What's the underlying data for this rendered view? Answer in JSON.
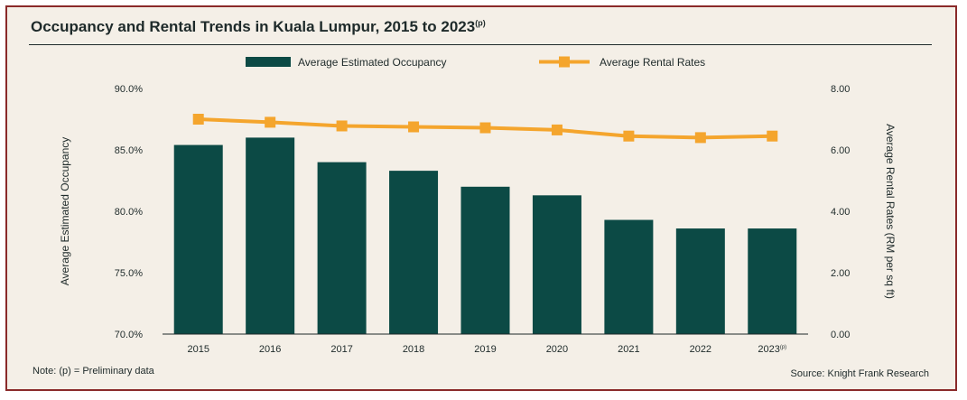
{
  "header": {
    "title": "Occupancy and Rental Trends in Kuala Lumpur, 2015 to 2023",
    "title_superscript": "(p)"
  },
  "footer": {
    "note": "Note: (p) = Preliminary data",
    "source": "Source: Knight Frank Research"
  },
  "colors": {
    "bar": "#0c4a45",
    "line": "#f4a52d",
    "frame": "#8a2a2a",
    "background": "#f4efe7"
  },
  "chart_data": {
    "type": "bar",
    "categories": [
      "2015",
      "2016",
      "2017",
      "2018",
      "2019",
      "2020",
      "2021",
      "2022",
      "2023(p)"
    ],
    "series": [
      {
        "name": "Average Estimated Occupancy",
        "type": "bar",
        "axis": "left",
        "values": [
          85.4,
          86.0,
          84.0,
          83.3,
          82.0,
          81.3,
          79.3,
          78.6,
          78.6
        ]
      },
      {
        "name": "Average Rental Rates",
        "type": "line",
        "axis": "right",
        "values": [
          7.0,
          6.9,
          6.78,
          6.75,
          6.72,
          6.65,
          6.45,
          6.4,
          6.45
        ]
      }
    ],
    "ylabel": "Average Estimated Occupancy",
    "y2label": "Average Rental Rates (RM per sq ft)",
    "ylim": [
      70,
      90
    ],
    "y2lim": [
      0,
      8
    ],
    "yticks": [
      "70.0%",
      "75.0%",
      "80.0%",
      "85.0%",
      "90.0%"
    ],
    "y2ticks": [
      "0.00",
      "2.00",
      "4.00",
      "6.00",
      "8.00"
    ],
    "legend": "top-center",
    "grid": false
  }
}
